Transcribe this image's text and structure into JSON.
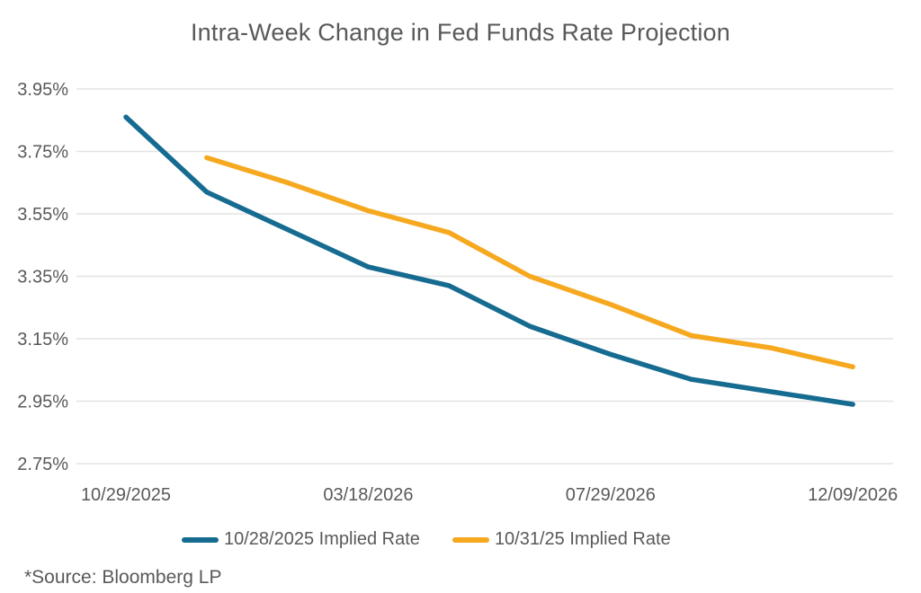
{
  "page": {
    "background": "#FFFFFF",
    "text_color": "#58595B",
    "grid_color": "#E3E3E3"
  },
  "source_note": "*Source: Bloomberg LP",
  "chart_data": {
    "type": "line",
    "title": "Intra-Week Change in Fed Funds Rate Projection",
    "xlabel": "",
    "ylabel": "",
    "grid": "horizontal",
    "legend_position": "bottom",
    "y_axis": {
      "range": [
        2.75,
        3.95
      ],
      "tick_values": [
        3.95,
        3.75,
        3.55,
        3.35,
        3.15,
        2.95,
        2.75
      ],
      "tick_labels": [
        "3.95%",
        "3.75%",
        "3.55%",
        "3.35%",
        "3.15%",
        "2.95%",
        "2.75%"
      ]
    },
    "x_axis": {
      "num_points": 10,
      "tick_labels": [
        "10/29/2025",
        "03/18/2026",
        "07/29/2026",
        "12/09/2026"
      ],
      "tick_point_indices": [
        0,
        3,
        6,
        9
      ]
    },
    "series": [
      {
        "name": "10/28/2025 Implied Rate",
        "color": "#166B91",
        "values": [
          3.86,
          3.62,
          3.5,
          3.38,
          3.32,
          3.19,
          3.1,
          3.02,
          2.98,
          2.94
        ]
      },
      {
        "name": "10/31/25 Implied Rate",
        "color": "#F6A81F",
        "values": [
          null,
          3.73,
          3.65,
          3.56,
          3.49,
          3.35,
          3.26,
          3.16,
          3.12,
          3.06
        ]
      }
    ]
  }
}
